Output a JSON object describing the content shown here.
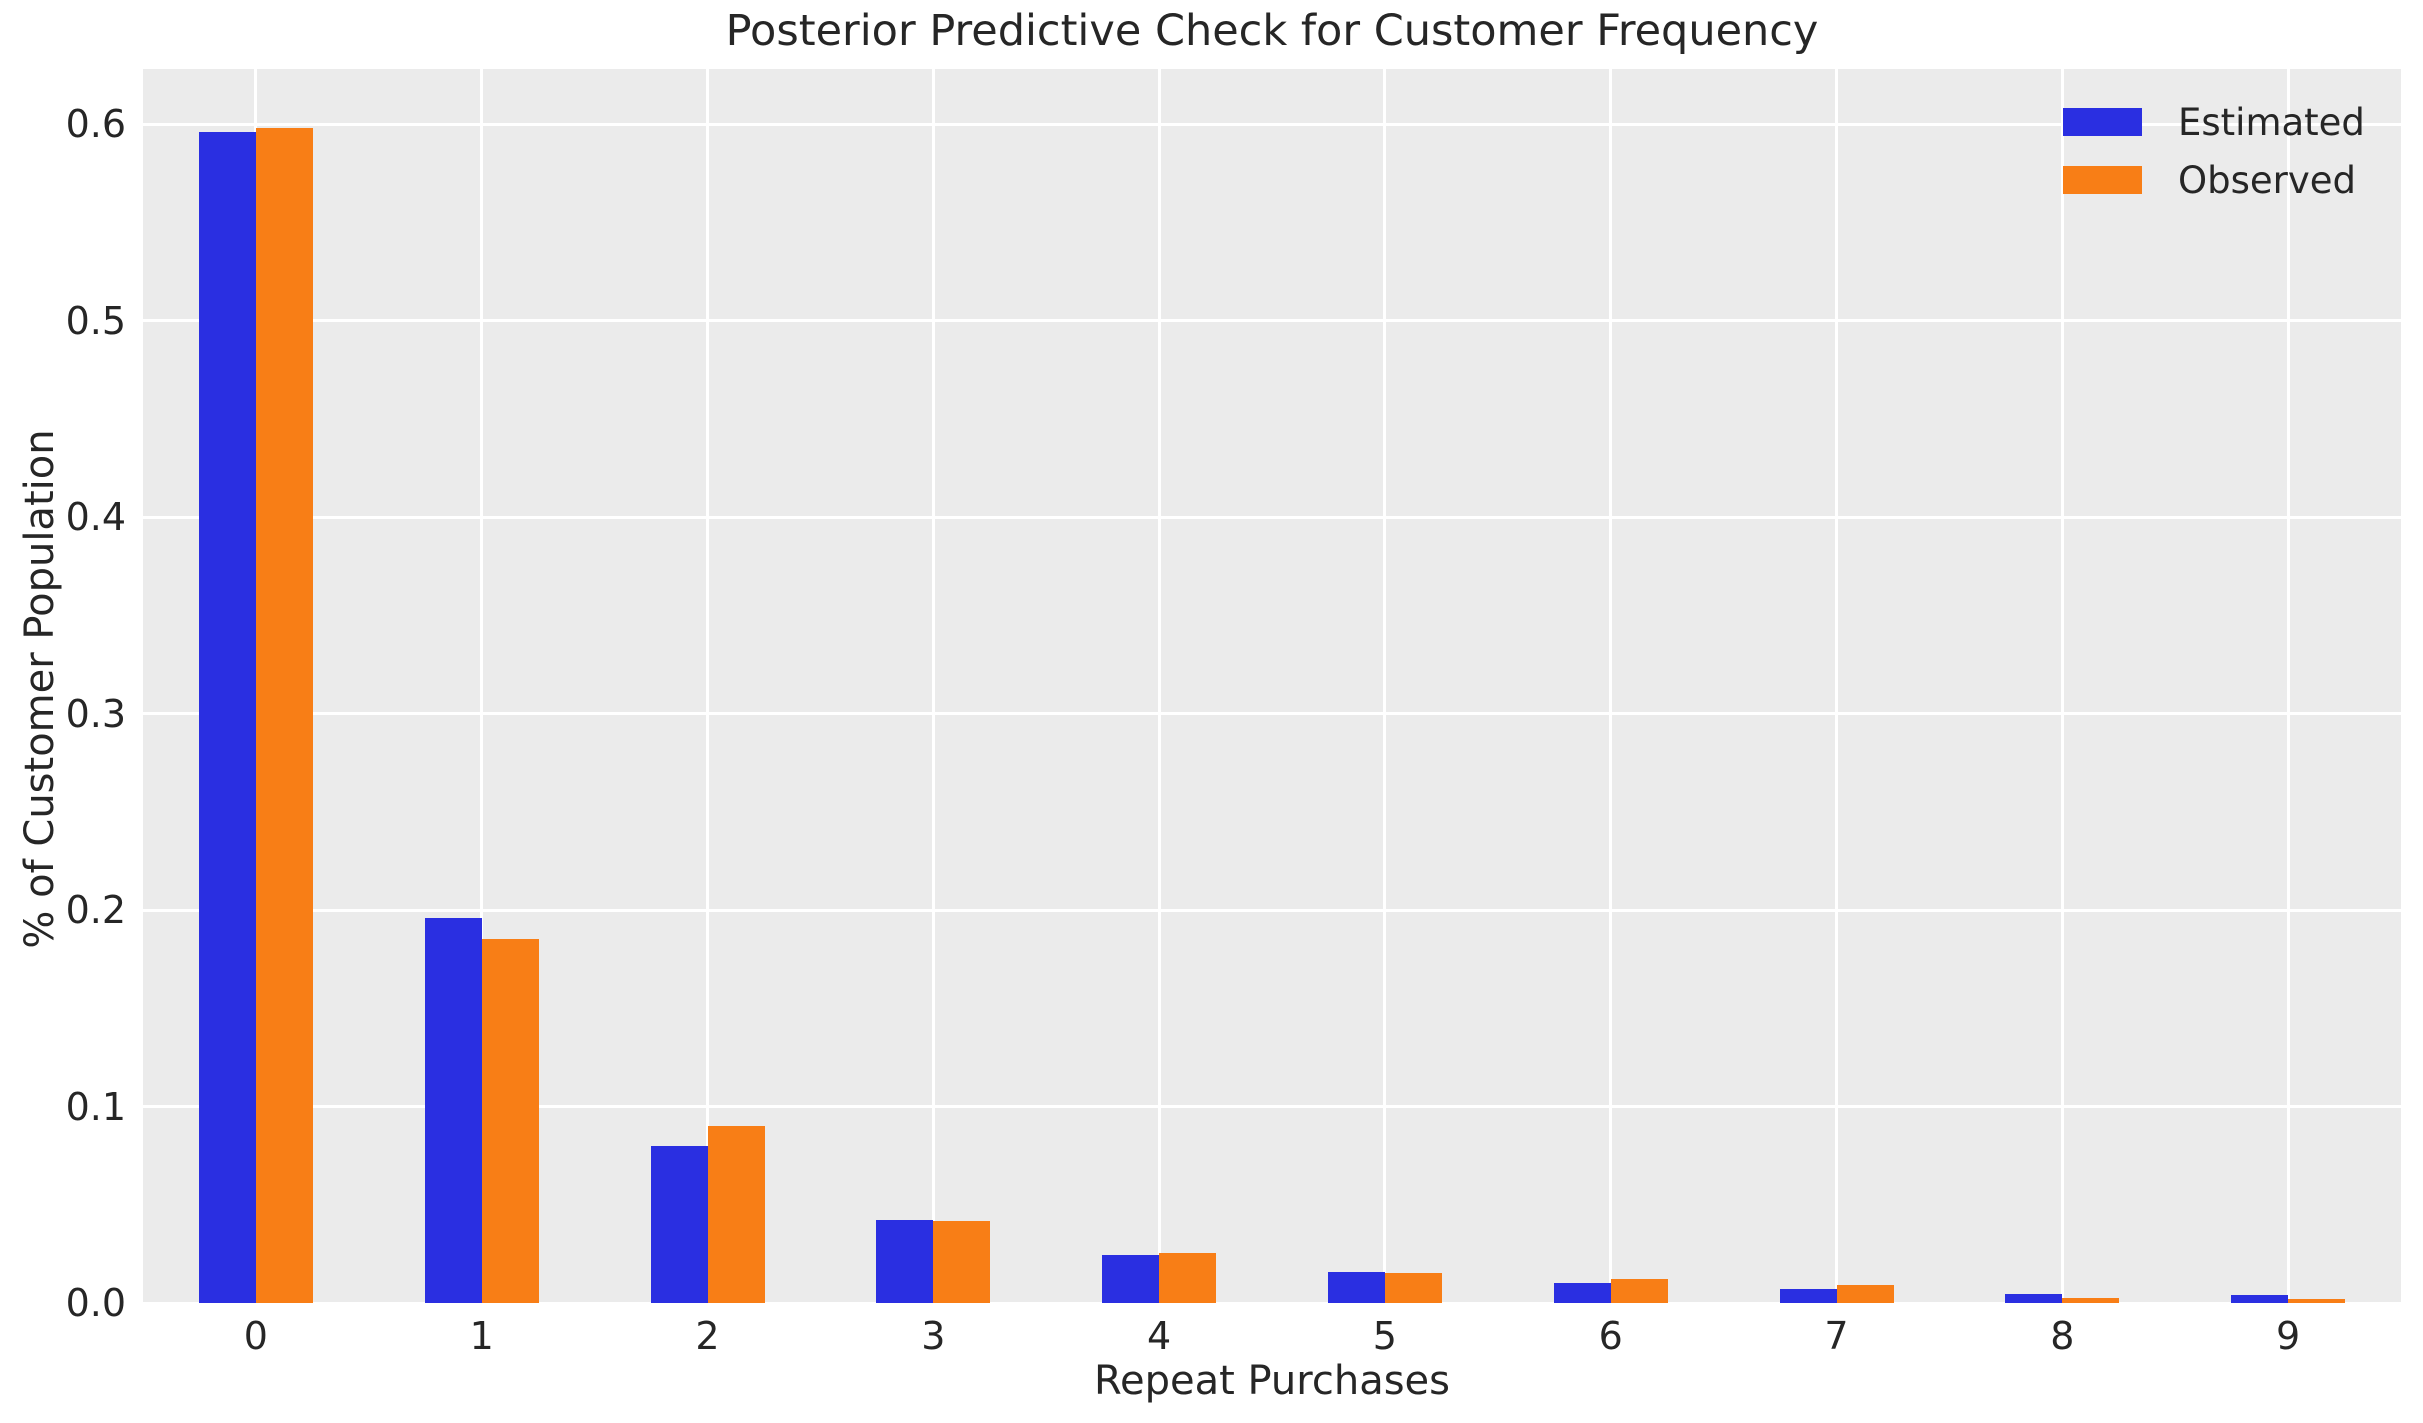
{
  "figure": {
    "background": "#ffffff",
    "plot_background": "#ebebeb",
    "grid_color": "#ffffff",
    "text_color": "#262626"
  },
  "chart_data": {
    "type": "bar",
    "title": "Posterior Predictive Check for Customer Frequency",
    "xlabel": "Repeat Purchases",
    "ylabel": "% of Customer Population",
    "categories": [
      "0",
      "1",
      "2",
      "3",
      "4",
      "5",
      "6",
      "7",
      "8",
      "9"
    ],
    "series": [
      {
        "name": "Estimated",
        "color": "#2a2fe1",
        "values": [
          0.596,
          0.196,
          0.08,
          0.042,
          0.0245,
          0.0158,
          0.0102,
          0.0071,
          0.0046,
          0.0041
        ]
      },
      {
        "name": "Observed",
        "color": "#f87e16",
        "values": [
          0.598,
          0.185,
          0.09,
          0.0417,
          0.0254,
          0.0153,
          0.0122,
          0.0092,
          0.0025,
          0.002
        ]
      }
    ],
    "ylim": [
      0,
      0.628
    ],
    "yticks": [
      0.0,
      0.1,
      0.2,
      0.3,
      0.4,
      0.5,
      0.6
    ],
    "ytick_labels": [
      "0.0",
      "0.1",
      "0.2",
      "0.3",
      "0.4",
      "0.5",
      "0.6"
    ],
    "grid": true,
    "legend_position": "upper right"
  }
}
